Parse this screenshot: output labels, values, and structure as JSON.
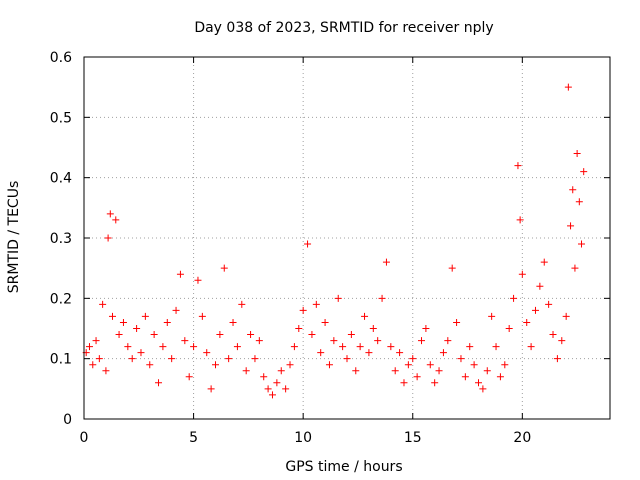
{
  "chart_data": {
    "type": "scatter",
    "title": "Day 038 of 2023, SRMTID for receiver nply",
    "xlabel": "GPS time / hours",
    "ylabel": "SRMTID / TECUs",
    "xlim": [
      0,
      24
    ],
    "ylim": [
      0,
      0.6
    ],
    "xticks": [
      0,
      5,
      10,
      15,
      20
    ],
    "yticks": [
      0,
      0.1,
      0.2,
      0.3,
      0.4,
      0.5,
      0.6
    ],
    "grid": true,
    "marker": "+",
    "series_color": "#ff0000",
    "series": [
      {
        "name": "SRMTID",
        "points": [
          [
            0.1,
            0.11
          ],
          [
            0.25,
            0.12
          ],
          [
            0.4,
            0.09
          ],
          [
            0.55,
            0.13
          ],
          [
            0.7,
            0.1
          ],
          [
            0.85,
            0.19
          ],
          [
            1.0,
            0.08
          ],
          [
            1.1,
            0.3
          ],
          [
            1.2,
            0.34
          ],
          [
            1.3,
            0.17
          ],
          [
            1.45,
            0.33
          ],
          [
            1.6,
            0.14
          ],
          [
            1.8,
            0.16
          ],
          [
            2.0,
            0.12
          ],
          [
            2.2,
            0.1
          ],
          [
            2.4,
            0.15
          ],
          [
            2.6,
            0.11
          ],
          [
            2.8,
            0.17
          ],
          [
            3.0,
            0.09
          ],
          [
            3.2,
            0.14
          ],
          [
            3.4,
            0.06
          ],
          [
            3.6,
            0.12
          ],
          [
            3.8,
            0.16
          ],
          [
            4.0,
            0.1
          ],
          [
            4.2,
            0.18
          ],
          [
            4.4,
            0.24
          ],
          [
            4.6,
            0.13
          ],
          [
            4.8,
            0.07
          ],
          [
            5.0,
            0.12
          ],
          [
            5.2,
            0.23
          ],
          [
            5.4,
            0.17
          ],
          [
            5.6,
            0.11
          ],
          [
            5.8,
            0.05
          ],
          [
            6.0,
            0.09
          ],
          [
            6.2,
            0.14
          ],
          [
            6.4,
            0.25
          ],
          [
            6.6,
            0.1
          ],
          [
            6.8,
            0.16
          ],
          [
            7.0,
            0.12
          ],
          [
            7.2,
            0.19
          ],
          [
            7.4,
            0.08
          ],
          [
            7.6,
            0.14
          ],
          [
            7.8,
            0.1
          ],
          [
            8.0,
            0.13
          ],
          [
            8.2,
            0.07
          ],
          [
            8.4,
            0.05
          ],
          [
            8.6,
            0.04
          ],
          [
            8.8,
            0.06
          ],
          [
            9.0,
            0.08
          ],
          [
            9.2,
            0.05
          ],
          [
            9.4,
            0.09
          ],
          [
            9.6,
            0.12
          ],
          [
            9.8,
            0.15
          ],
          [
            10.0,
            0.18
          ],
          [
            10.2,
            0.29
          ],
          [
            10.4,
            0.14
          ],
          [
            10.6,
            0.19
          ],
          [
            10.8,
            0.11
          ],
          [
            11.0,
            0.16
          ],
          [
            11.2,
            0.09
          ],
          [
            11.4,
            0.13
          ],
          [
            11.6,
            0.2
          ],
          [
            11.8,
            0.12
          ],
          [
            12.0,
            0.1
          ],
          [
            12.2,
            0.14
          ],
          [
            12.4,
            0.08
          ],
          [
            12.6,
            0.12
          ],
          [
            12.8,
            0.17
          ],
          [
            13.0,
            0.11
          ],
          [
            13.2,
            0.15
          ],
          [
            13.4,
            0.13
          ],
          [
            13.6,
            0.2
          ],
          [
            13.8,
            0.26
          ],
          [
            14.0,
            0.12
          ],
          [
            14.2,
            0.08
          ],
          [
            14.4,
            0.11
          ],
          [
            14.6,
            0.06
          ],
          [
            14.8,
            0.09
          ],
          [
            15.0,
            0.1
          ],
          [
            15.2,
            0.07
          ],
          [
            15.4,
            0.13
          ],
          [
            15.6,
            0.15
          ],
          [
            15.8,
            0.09
          ],
          [
            16.0,
            0.06
          ],
          [
            16.2,
            0.08
          ],
          [
            16.4,
            0.11
          ],
          [
            16.6,
            0.13
          ],
          [
            16.8,
            0.25
          ],
          [
            17.0,
            0.16
          ],
          [
            17.2,
            0.1
          ],
          [
            17.4,
            0.07
          ],
          [
            17.6,
            0.12
          ],
          [
            17.8,
            0.09
          ],
          [
            18.0,
            0.06
          ],
          [
            18.2,
            0.05
          ],
          [
            18.4,
            0.08
          ],
          [
            18.6,
            0.17
          ],
          [
            18.8,
            0.12
          ],
          [
            19.0,
            0.07
          ],
          [
            19.2,
            0.09
          ],
          [
            19.4,
            0.15
          ],
          [
            19.6,
            0.2
          ],
          [
            19.8,
            0.42
          ],
          [
            19.9,
            0.33
          ],
          [
            20.0,
            0.24
          ],
          [
            20.2,
            0.16
          ],
          [
            20.4,
            0.12
          ],
          [
            20.6,
            0.18
          ],
          [
            20.8,
            0.22
          ],
          [
            21.0,
            0.26
          ],
          [
            21.2,
            0.19
          ],
          [
            21.4,
            0.14
          ],
          [
            21.6,
            0.1
          ],
          [
            21.8,
            0.13
          ],
          [
            22.0,
            0.17
          ],
          [
            22.1,
            0.55
          ],
          [
            22.2,
            0.32
          ],
          [
            22.3,
            0.38
          ],
          [
            22.4,
            0.25
          ],
          [
            22.5,
            0.44
          ],
          [
            22.6,
            0.36
          ],
          [
            22.7,
            0.29
          ],
          [
            22.8,
            0.41
          ]
        ]
      }
    ]
  }
}
